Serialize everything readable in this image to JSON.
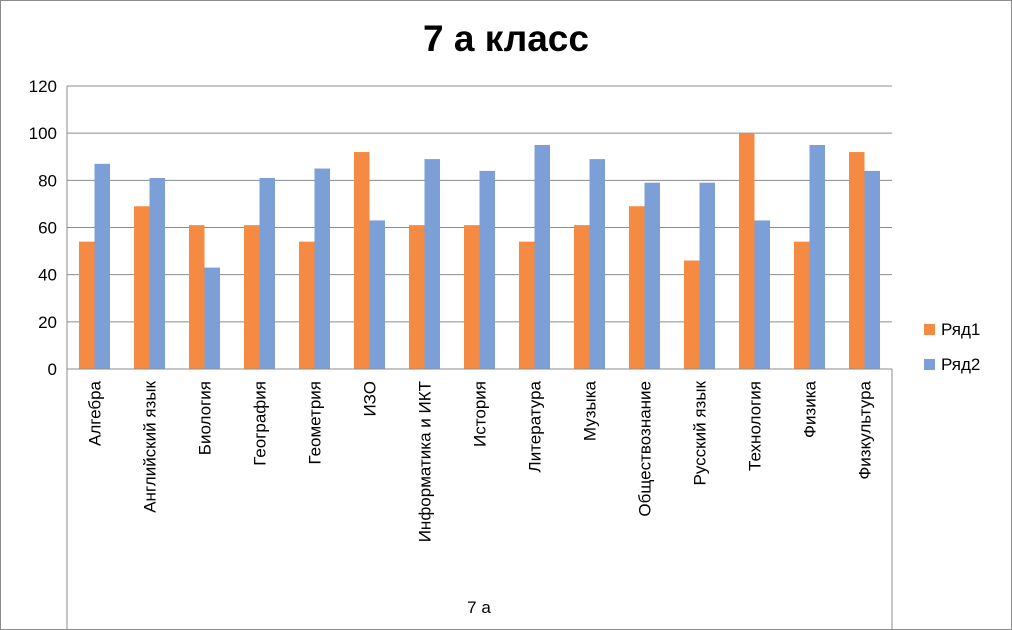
{
  "chart_data": {
    "type": "bar",
    "title": "7 а класс",
    "group_label": "7 а",
    "categories": [
      "Алгебра",
      "Английский язык",
      "Биология",
      "География",
      "Геометрия",
      "ИЗО",
      "Информатика и ИКТ",
      "История",
      "Литература",
      "Музыка",
      "Обществознание",
      "Русский язык",
      "Технология",
      "Физика",
      "Физкультура"
    ],
    "series": [
      {
        "name": "Ряд1",
        "color": "#f58a42",
        "values": [
          54,
          69,
          61,
          61,
          54,
          92,
          61,
          61,
          54,
          61,
          69,
          46,
          100,
          54,
          92
        ]
      },
      {
        "name": "Ряд2",
        "color": "#7b9fd6",
        "values": [
          87,
          81,
          43,
          81,
          85,
          63,
          89,
          84,
          95,
          89,
          79,
          79,
          63,
          95,
          84
        ]
      }
    ],
    "ylim": [
      0,
      120
    ],
    "yticks": [
      0,
      20,
      40,
      60,
      80,
      100,
      120
    ],
    "grid": true,
    "legend_position": "right"
  }
}
